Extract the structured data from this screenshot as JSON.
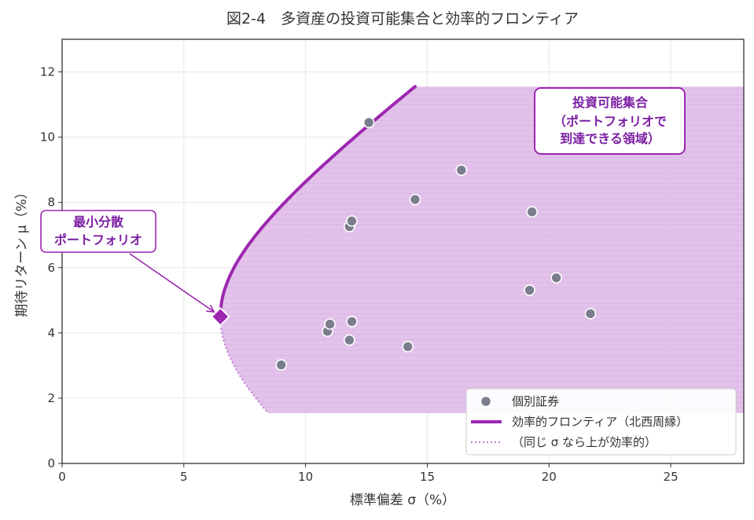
{
  "chart_data": {
    "type": "scatter",
    "title": "図2-4　多資産の投資可能集合と効率的フロンティア",
    "xlabel": "標準偏差 σ（%）",
    "ylabel": "期待リターン μ（%）",
    "xlim": [
      0,
      28
    ],
    "ylim": [
      0,
      13
    ],
    "x_ticks": [
      "0",
      "5",
      "10",
      "15",
      "20",
      "25"
    ],
    "y_ticks": [
      "0",
      "2",
      "4",
      "6",
      "8",
      "10",
      "12"
    ],
    "grid": true,
    "legend_position": "lower-right",
    "colors": {
      "frontier": "#9c27b0",
      "region": "#ddb7e6",
      "points": "#7a7d8c",
      "annotation_text": "#7b1fa2"
    },
    "series": [
      {
        "name": "個別証券",
        "kind": "scatter",
        "points": [
          {
            "x": 9.0,
            "y": 3.02
          },
          {
            "x": 10.9,
            "y": 4.05
          },
          {
            "x": 11.0,
            "y": 4.27
          },
          {
            "x": 11.8,
            "y": 3.78
          },
          {
            "x": 11.9,
            "y": 4.35
          },
          {
            "x": 11.8,
            "y": 7.26
          },
          {
            "x": 11.9,
            "y": 7.43
          },
          {
            "x": 12.6,
            "y": 10.45
          },
          {
            "x": 14.2,
            "y": 3.58
          },
          {
            "x": 14.5,
            "y": 8.09
          },
          {
            "x": 16.4,
            "y": 8.99
          },
          {
            "x": 19.2,
            "y": 5.31
          },
          {
            "x": 19.3,
            "y": 7.71
          },
          {
            "x": 20.3,
            "y": 5.69
          },
          {
            "x": 21.7,
            "y": 4.59
          }
        ]
      },
      {
        "name": "効率的フロンティア（北西周縁）",
        "kind": "line",
        "min_variance_point": {
          "x": 6.5,
          "y": 4.5
        },
        "end_point": {
          "x": 14.5,
          "y": 11.55
        }
      },
      {
        "name": "（同じ σ なら上が効率的）",
        "kind": "dotted",
        "end_point": {
          "x": 8.5,
          "y": 1.55
        }
      }
    ],
    "region": {
      "name": "投資可能集合",
      "y_bottom": 1.55,
      "y_top": 11.55,
      "x_right": 28
    },
    "annotations": [
      {
        "id": "feasible",
        "lines": [
          "投資可能集合",
          "（ポートフォリオで",
          "到達できる領域）"
        ]
      },
      {
        "id": "minvar",
        "lines": [
          "最小分散",
          "ポートフォリオ"
        ]
      }
    ]
  }
}
